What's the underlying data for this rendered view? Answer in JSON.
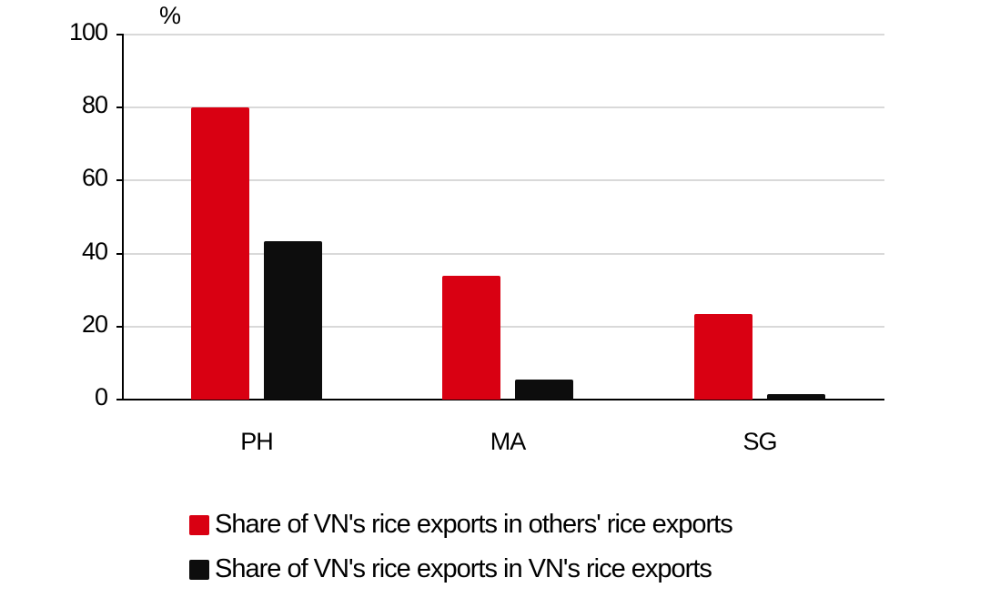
{
  "chart_data": {
    "type": "bar",
    "title": "",
    "unit_label": "%",
    "xlabel": "",
    "ylabel": "%",
    "ylim": [
      0,
      100
    ],
    "yticks": [
      "0",
      "20",
      "40",
      "60",
      "80",
      "100"
    ],
    "grid": true,
    "legend_position": "bottom",
    "categories": [
      "PH",
      "MA",
      "SG"
    ],
    "series": [
      {
        "name": "Share of VN's rice exports in others' rice exports",
        "color": "#d90012",
        "values": [
          80,
          34,
          23.5
        ]
      },
      {
        "name": "Share of VN's rice exports in VN's rice exports",
        "color": "#0d0d0d",
        "values": [
          43.5,
          5.5,
          1.5
        ]
      }
    ]
  }
}
